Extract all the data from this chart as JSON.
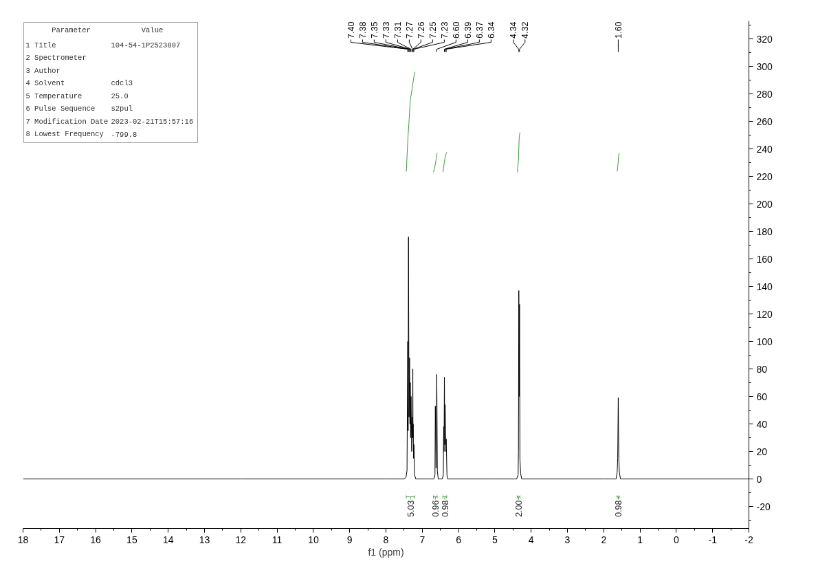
{
  "chart_data": {
    "type": "line",
    "xlabel": "f1 (ppm)",
    "xlim": [
      18,
      -2
    ],
    "xticks": [
      18,
      17,
      16,
      15,
      14,
      13,
      12,
      11,
      10,
      9,
      8,
      7,
      6,
      5,
      4,
      3,
      2,
      1,
      0,
      -1,
      -2
    ],
    "ylim": [
      -36,
      333
    ],
    "yticks": [
      -20,
      0,
      20,
      40,
      60,
      80,
      100,
      120,
      140,
      160,
      180,
      200,
      220,
      240,
      260,
      280,
      300,
      320
    ],
    "series": [
      {
        "color": "#000000",
        "x": [
          18,
          12,
          8,
          7.5,
          7.45,
          7.42,
          7.4,
          7.39,
          7.38,
          7.365,
          7.35,
          7.34,
          7.33,
          7.32,
          7.31,
          7.29,
          7.27,
          7.265,
          7.26,
          7.255,
          7.25,
          7.24,
          7.23,
          7.21,
          7.18,
          6.8,
          6.68,
          6.65,
          6.64,
          6.62,
          6.6,
          6.585,
          6.56,
          6.45,
          6.42,
          6.41,
          6.4,
          6.39,
          6.38,
          6.37,
          6.36,
          6.35,
          6.34,
          6.32,
          6.3,
          5,
          4.4,
          4.36,
          4.35,
          4.34,
          4.33,
          4.32,
          4.31,
          4.29,
          4.26,
          2,
          1.66,
          1.63,
          1.615,
          1.6,
          1.585,
          1.57,
          1.54,
          0,
          -2
        ],
        "values": [
          0,
          0,
          0,
          0,
          1,
          6,
          100,
          35,
          176,
          45,
          88,
          40,
          70,
          30,
          60,
          20,
          45,
          30,
          80,
          30,
          40,
          15,
          25,
          3,
          0,
          0,
          0,
          3,
          53,
          8,
          76,
          6,
          0,
          0,
          3,
          38,
          20,
          74,
          25,
          54,
          33,
          20,
          29,
          3,
          0,
          0,
          0,
          3,
          20,
          137,
          60,
          127,
          15,
          4,
          0,
          0,
          0,
          5,
          15,
          59,
          15,
          5,
          0,
          0,
          0
        ]
      },
      {
        "color": "#3c9c3c",
        "x": [
          7.44,
          7.41,
          7.39,
          7.36,
          7.33,
          7.3,
          7.28,
          7.25,
          7.21
        ],
        "values": [
          223.5,
          240,
          250,
          262,
          276,
          280,
          284,
          289,
          296
        ]
      },
      {
        "color": "#3c9c3c",
        "x": [
          6.69,
          6.64,
          6.62,
          6.6,
          6.59
        ],
        "values": [
          223,
          229,
          232,
          236,
          237
        ]
      },
      {
        "color": "#3c9c3c",
        "x": [
          6.43,
          6.4,
          6.37,
          6.33
        ],
        "values": [
          223,
          229,
          234,
          237.5
        ]
      },
      {
        "color": "#3c9c3c",
        "x": [
          4.38,
          4.35,
          4.33,
          4.31
        ],
        "values": [
          223,
          232,
          248,
          252
        ]
      },
      {
        "color": "#3c9c3c",
        "x": [
          1.63,
          1.61,
          1.6,
          1.59,
          1.57
        ],
        "values": [
          223.5,
          228,
          231,
          235,
          237
        ]
      }
    ],
    "annotations": [
      "Parameter\tValue",
      "1 Title\t104-54-1P2523807",
      "2 Spectrometer",
      "3 Author",
      "4 Solvent\tcdcl3",
      "5 Temperature\t25.0",
      "6 Pulse Sequence\ts2pul",
      "7 Modification Date\t2023-02-21T15:57:16",
      "8 Lowest Frequency\t-799.8",
      {
        "text": "7.40",
        "x": 7.4
      },
      {
        "text": "7.38",
        "x": 7.38
      },
      {
        "text": "7.35",
        "x": 7.35
      },
      {
        "text": "7.33",
        "x": 7.33
      },
      {
        "text": "7.31",
        "x": 7.31
      },
      {
        "text": "7.27",
        "x": 7.27
      },
      {
        "text": "7.26",
        "x": 7.26
      },
      {
        "text": "7.25",
        "x": 7.25
      },
      {
        "text": "7.23",
        "x": 7.23
      },
      {
        "text": "6.60",
        "x": 6.6
      },
      {
        "text": "6.39",
        "x": 6.39
      },
      {
        "text": "6.37",
        "x": 6.37
      },
      {
        "text": "6.34",
        "x": 6.34
      },
      {
        "text": "4.34",
        "x": 4.34
      },
      {
        "text": "4.32",
        "x": 4.32
      },
      {
        "text": "1.60",
        "x": 1.6
      },
      "5.03",
      "0.96",
      "0.98",
      "2.00",
      "0.98"
    ]
  }
}
